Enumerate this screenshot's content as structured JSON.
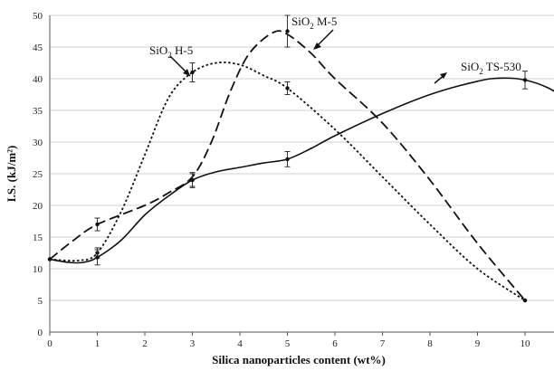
{
  "chart_data": {
    "type": "line",
    "xlabel": "Silica nanoparticles content (wt%)",
    "ylabel": "I.S. (kJ/m²)",
    "xlim": [
      0,
      10.8
    ],
    "ylim": [
      0,
      50
    ],
    "x_ticks": [
      "0",
      "1",
      "2",
      "3",
      "4",
      "5",
      "6",
      "7",
      "8",
      "9",
      "10"
    ],
    "y_ticks": [
      "0",
      "5",
      "10",
      "15",
      "20",
      "25",
      "30",
      "35",
      "40",
      "45",
      "50"
    ],
    "grid": "horizontal",
    "series": [
      {
        "name": "SiO₂ H-5",
        "label_parts": [
          "SiO",
          "2",
          " H-5"
        ],
        "style": "dotted",
        "x": [
          0,
          1,
          3,
          5,
          10
        ],
        "y": [
          11.5,
          12.5,
          41,
          38.5,
          5
        ],
        "err": [
          0,
          0.8,
          1.5,
          1,
          0
        ],
        "curve": [
          [
            0,
            11.5
          ],
          [
            0.6,
            11.3
          ],
          [
            1,
            12.5
          ],
          [
            1.5,
            19
          ],
          [
            2,
            28
          ],
          [
            2.5,
            37
          ],
          [
            3,
            41
          ],
          [
            3.5,
            42.5
          ],
          [
            4,
            42.2
          ],
          [
            4.5,
            40.5
          ],
          [
            5,
            38.5
          ],
          [
            6,
            32
          ],
          [
            7,
            24.5
          ],
          [
            8,
            17
          ],
          [
            9,
            10
          ],
          [
            10,
            5
          ]
        ]
      },
      {
        "name": "SiO₂ M-5",
        "label_parts": [
          "SiO",
          "2",
          " M-5"
        ],
        "style": "dashed",
        "x": [
          0,
          1,
          3,
          5,
          10
        ],
        "y": [
          11.5,
          17,
          24,
          47.5,
          5
        ],
        "err": [
          0,
          1,
          1,
          2.5,
          0
        ],
        "curve": [
          [
            0,
            11.5
          ],
          [
            0.5,
            14.5
          ],
          [
            1,
            17
          ],
          [
            2,
            20
          ],
          [
            2.5,
            22
          ],
          [
            3,
            24.5
          ],
          [
            3.4,
            30
          ],
          [
            3.8,
            38
          ],
          [
            4.2,
            44
          ],
          [
            4.7,
            47.3
          ],
          [
            5,
            47
          ],
          [
            5.5,
            44
          ],
          [
            6,
            40
          ],
          [
            7,
            33
          ],
          [
            8,
            24
          ],
          [
            9,
            14
          ],
          [
            10,
            5
          ]
        ]
      },
      {
        "name": "SiO₂ TS-530",
        "label_parts": [
          "SiO",
          "2",
          " TS-530"
        ],
        "style": "solid",
        "x": [
          0,
          1,
          3,
          5,
          10
        ],
        "y": [
          11.5,
          11.8,
          24,
          27.3,
          39.8
        ],
        "err": [
          0,
          1.2,
          1.2,
          1.2,
          1.4
        ],
        "curve": [
          [
            0,
            11.5
          ],
          [
            0.4,
            11
          ],
          [
            0.7,
            11
          ],
          [
            1,
            11.8
          ],
          [
            1.5,
            14.5
          ],
          [
            2,
            18.5
          ],
          [
            2.5,
            21.5
          ],
          [
            3,
            24
          ],
          [
            3.5,
            25.3
          ],
          [
            4,
            26
          ],
          [
            4.5,
            26.7
          ],
          [
            5,
            27.3
          ],
          [
            5.5,
            29
          ],
          [
            6,
            31
          ],
          [
            7,
            34.5
          ],
          [
            8,
            37.5
          ],
          [
            9,
            39.6
          ],
          [
            9.5,
            40.1
          ],
          [
            10,
            39.8
          ],
          [
            10.5,
            38.5
          ],
          [
            10.8,
            37
          ]
        ]
      }
    ]
  }
}
